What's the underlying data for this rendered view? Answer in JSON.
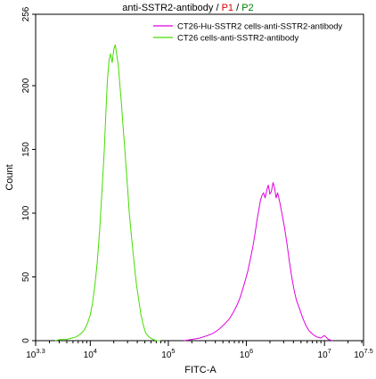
{
  "chart_data": {
    "type": "line",
    "title_parts": [
      {
        "text": "anti-SSTR2-antibody",
        "color": "#000000"
      },
      {
        "text": " / ",
        "color": "#000000"
      },
      {
        "text": "P1",
        "color": "#e00000"
      },
      {
        "text": " / ",
        "color": "#000000"
      },
      {
        "text": "P2",
        "color": "#008000"
      }
    ],
    "xlabel": "FITC-A",
    "ylabel": "Count",
    "x_scale": "log10",
    "xlim": [
      3.3,
      7.5
    ],
    "ylim": [
      0,
      256
    ],
    "x_ticks": [
      {
        "base": "10",
        "exp": "3.3",
        "value": 3.3
      },
      {
        "base": "10",
        "exp": "4",
        "value": 4
      },
      {
        "base": "10",
        "exp": "5",
        "value": 5
      },
      {
        "base": "10",
        "exp": "6",
        "value": 6
      },
      {
        "base": "10",
        "exp": "7",
        "value": 7
      },
      {
        "base": "10",
        "exp": "7.5",
        "value": 7.5
      }
    ],
    "y_ticks": [
      "0",
      "50",
      "100",
      "150",
      "200",
      "256"
    ],
    "y_tick_values": [
      0,
      50,
      100,
      150,
      200,
      256
    ],
    "legend": {
      "placement": "top-right"
    },
    "series": [
      {
        "name": "CT26-Hu-SSTR2 cells-anti-SSTR2-antibody",
        "color": "#e000e0",
        "x_log10": [
          5.2,
          5.3,
          5.4,
          5.5,
          5.58,
          5.65,
          5.72,
          5.78,
          5.83,
          5.88,
          5.92,
          5.95,
          5.98,
          6.02,
          6.05,
          6.08,
          6.1,
          6.12,
          6.14,
          6.16,
          6.18,
          6.2,
          6.22,
          6.24,
          6.26,
          6.28,
          6.3,
          6.32,
          6.34,
          6.36,
          6.38,
          6.4,
          6.43,
          6.46,
          6.49,
          6.52,
          6.55,
          6.58,
          6.61,
          6.64,
          6.68,
          6.72,
          6.76,
          6.8,
          6.85,
          6.9,
          6.95,
          7.0,
          7.05,
          7.1
        ],
        "values": [
          0,
          1,
          2,
          4,
          6,
          9,
          13,
          17,
          22,
          28,
          34,
          40,
          46,
          55,
          64,
          73,
          80,
          88,
          96,
          103,
          110,
          114,
          116,
          112,
          118,
          122,
          115,
          117,
          124,
          120,
          112,
          116,
          108,
          98,
          88,
          76,
          62,
          50,
          40,
          32,
          25,
          18,
          12,
          8,
          5,
          3,
          2,
          4,
          1,
          0
        ]
      },
      {
        "name": "CT26 cells-anti-SSTR2-antibody",
        "color": "#44dd00",
        "x_log10": [
          3.55,
          3.62,
          3.7,
          3.76,
          3.82,
          3.87,
          3.92,
          3.96,
          4.0,
          4.03,
          4.06,
          4.09,
          4.12,
          4.15,
          4.18,
          4.2,
          4.22,
          4.24,
          4.26,
          4.28,
          4.3,
          4.32,
          4.34,
          4.36,
          4.38,
          4.4,
          4.42,
          4.44,
          4.46,
          4.48,
          4.5,
          4.53,
          4.56,
          4.59,
          4.62,
          4.65,
          4.68,
          4.71,
          4.75,
          4.8,
          4.85,
          4.9
        ],
        "values": [
          0,
          1,
          1,
          2,
          3,
          5,
          8,
          13,
          20,
          30,
          44,
          62,
          86,
          118,
          150,
          180,
          205,
          220,
          225,
          218,
          228,
          232,
          224,
          215,
          200,
          185,
          168,
          152,
          135,
          118,
          100,
          80,
          62,
          45,
          32,
          20,
          12,
          6,
          3,
          1,
          0,
          0
        ]
      }
    ]
  }
}
